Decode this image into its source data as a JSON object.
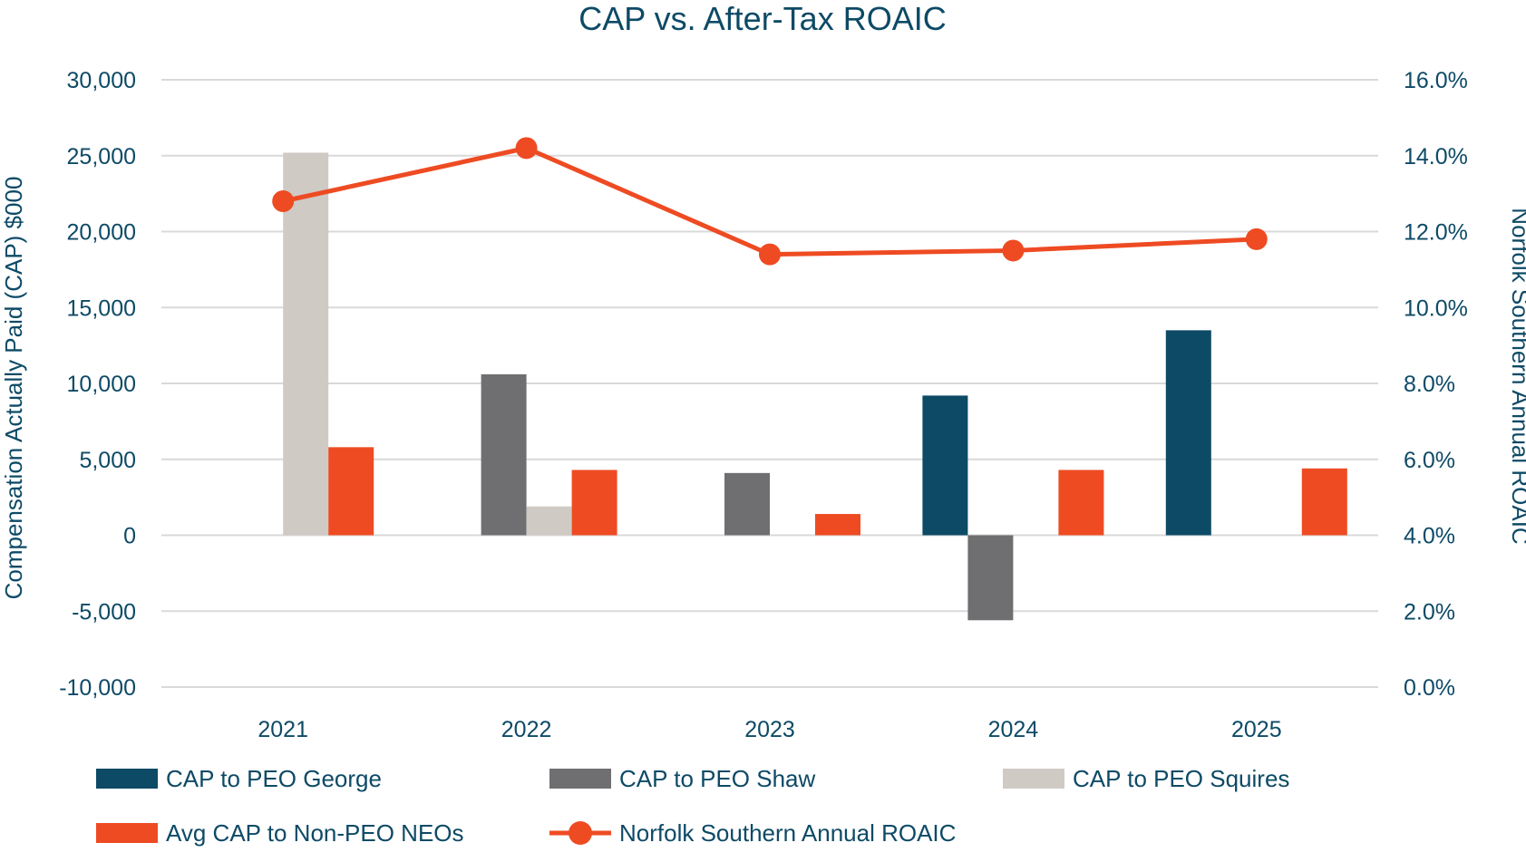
{
  "colors": {
    "george": "#0d4a66",
    "shaw": "#6f6f71",
    "squires": "#cfcac4",
    "non_peo": "#ee4b23",
    "roaic": "#ee4b23",
    "text": "#0d4a66",
    "grid": "#d9d9d9"
  },
  "chart_data": {
    "type": "bar",
    "title": "CAP vs. After-Tax ROAIC",
    "categories": [
      "2021",
      "2022",
      "2023",
      "2024",
      "2025"
    ],
    "ylabel": "Compensation Actually Paid (CAP) $000",
    "y2label": "Norfolk Southern Annual ROAIC",
    "ylim": [
      -10000,
      30000
    ],
    "yticks": [
      30000,
      25000,
      20000,
      15000,
      10000,
      5000,
      0,
      -5000,
      -10000
    ],
    "ytick_labels": [
      "30,000",
      "25,000",
      "20,000",
      "15,000",
      "10,000",
      "5,000",
      "0",
      "-5,000",
      "-10,000"
    ],
    "y2lim": [
      0,
      16
    ],
    "y2ticks": [
      16,
      14,
      12,
      10,
      8,
      6,
      4,
      2,
      0
    ],
    "y2tick_labels": [
      "16.0%",
      "14.0%",
      "12.0%",
      "10.0%",
      "8.0%",
      "6.0%",
      "4.0%",
      "2.0%",
      "0.0%"
    ],
    "series": [
      {
        "name": "CAP to PEO George",
        "kind": "bar",
        "color_key": "george",
        "values": [
          null,
          null,
          null,
          9200,
          13500
        ]
      },
      {
        "name": "CAP to PEO Shaw",
        "kind": "bar",
        "color_key": "shaw",
        "values": [
          null,
          10600,
          4100,
          -5600,
          null
        ]
      },
      {
        "name": "CAP to PEO Squires",
        "kind": "bar",
        "color_key": "squires",
        "values": [
          25200,
          1900,
          null,
          null,
          null
        ]
      },
      {
        "name": "Avg CAP to Non-PEO NEOs",
        "kind": "bar",
        "color_key": "non_peo",
        "values": [
          5800,
          4300,
          1400,
          4300,
          4400
        ]
      },
      {
        "name": "Norfolk Southern Annual ROAIC",
        "kind": "line",
        "axis": "right",
        "color_key": "roaic",
        "values": [
          12.8,
          14.2,
          11.4,
          11.5,
          11.8
        ]
      }
    ],
    "legend_position": "bottom"
  }
}
